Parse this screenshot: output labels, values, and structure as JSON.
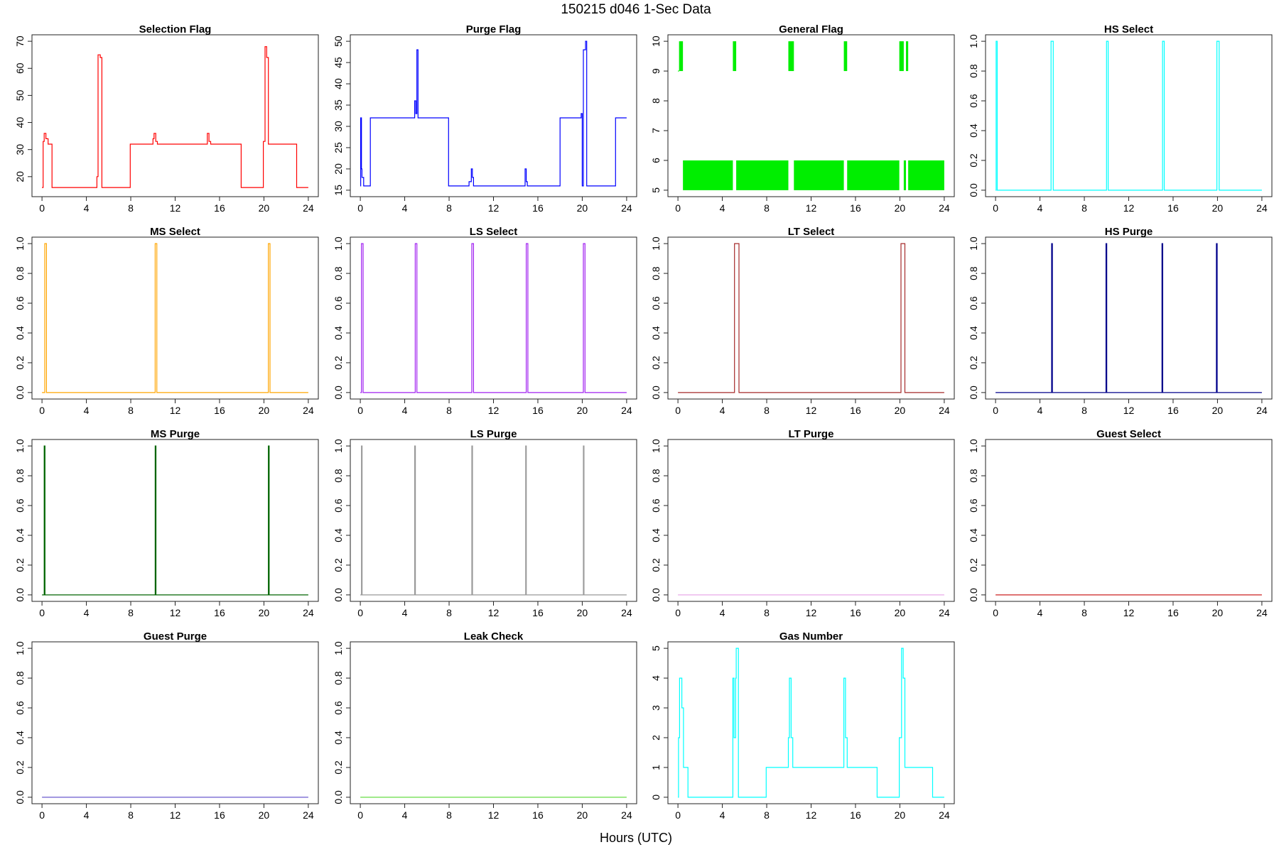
{
  "figure": {
    "title": "150215   d046   1-Sec Data",
    "xlabel": "Hours (UTC)"
  },
  "chart_data": [
    {
      "type": "line",
      "title": "Selection Flag",
      "color": "#ff0000",
      "xlim": [
        0,
        24
      ],
      "ylim": [
        15,
        70
      ],
      "xticks": [
        0,
        4,
        8,
        12,
        16,
        20,
        24
      ],
      "yticks": [
        20,
        30,
        40,
        50,
        60,
        70
      ],
      "x": [
        0,
        0.1,
        0.1,
        0.2,
        0.2,
        0.35,
        0.35,
        0.55,
        0.55,
        0.9,
        0.9,
        4.95,
        4.95,
        5.05,
        5.05,
        5.25,
        5.25,
        5.4,
        5.4,
        5.55,
        5.55,
        7.95,
        7.95,
        10.0,
        10.0,
        10.1,
        10.1,
        10.25,
        10.25,
        10.4,
        10.4,
        14.9,
        14.9,
        15.05,
        15.05,
        15.2,
        15.2,
        17.95,
        17.95,
        19.95,
        19.95,
        20.1,
        20.1,
        20.25,
        20.25,
        20.4,
        20.4,
        20.55,
        20.55,
        22.95,
        22.95,
        24
      ],
      "y": [
        16,
        16,
        33,
        33,
        36,
        36,
        34,
        34,
        32,
        32,
        16,
        16,
        20,
        20,
        65,
        65,
        64,
        64,
        16,
        16,
        16,
        16,
        32,
        32,
        34,
        34,
        36,
        36,
        33,
        33,
        32,
        32,
        36,
        36,
        33,
        33,
        32,
        32,
        16,
        16,
        33,
        33,
        68,
        68,
        64,
        64,
        32,
        32,
        32,
        32,
        16,
        16
      ]
    },
    {
      "type": "line",
      "title": "Purge Flag",
      "color": "#0000ff",
      "xlim": [
        0,
        24
      ],
      "ylim": [
        15,
        50
      ],
      "xticks": [
        0,
        4,
        8,
        12,
        16,
        20,
        24
      ],
      "yticks": [
        15,
        20,
        25,
        30,
        35,
        40,
        45,
        50
      ],
      "x": [
        0,
        0.03,
        0.03,
        0.1,
        0.1,
        0.15,
        0.15,
        0.3,
        0.3,
        0.9,
        0.9,
        4.9,
        4.9,
        5.0,
        5.0,
        5.1,
        5.1,
        5.2,
        5.2,
        5.55,
        5.55,
        7.95,
        7.95,
        9.8,
        9.8,
        10.0,
        10.0,
        10.1,
        10.1,
        10.2,
        10.2,
        14.85,
        14.85,
        14.95,
        14.95,
        15.05,
        15.05,
        18.0,
        18.0,
        19.9,
        19.9,
        20.0,
        20.0,
        20.1,
        20.1,
        20.3,
        20.3,
        20.4,
        20.4,
        23.0,
        23.0,
        24
      ],
      "y": [
        16,
        16,
        32,
        32,
        20,
        20,
        18,
        18,
        16,
        16,
        32,
        32,
        36,
        36,
        33,
        33,
        48,
        48,
        32,
        32,
        32,
        32,
        16,
        16,
        17,
        17,
        20,
        20,
        18,
        18,
        16,
        16,
        20,
        20,
        17,
        17,
        16,
        16,
        32,
        32,
        33,
        33,
        16,
        16,
        48,
        48,
        50,
        50,
        16,
        16,
        32,
        32
      ]
    },
    {
      "type": "line",
      "title": "General Flag",
      "color": "#00ee00",
      "xlim": [
        0,
        24
      ],
      "ylim": [
        5,
        10
      ],
      "xticks": [
        0,
        4,
        8,
        12,
        16,
        20,
        24
      ],
      "yticks": [
        5,
        6,
        7,
        8,
        9,
        10
      ],
      "segments": [
        [
          0,
          0.1,
          0,
          9
        ],
        [
          0.1,
          0.45,
          9,
          10
        ],
        [
          0.45,
          4.95,
          5,
          6
        ],
        [
          4.95,
          5.25,
          9,
          10
        ],
        [
          5.25,
          9.95,
          5,
          6
        ],
        [
          9.95,
          10.45,
          9,
          10
        ],
        [
          10.45,
          14.95,
          5,
          6
        ],
        [
          14.95,
          15.25,
          9,
          10
        ],
        [
          15.25,
          19.95,
          5,
          6
        ],
        [
          19.95,
          20.35,
          9,
          10
        ],
        [
          20.35,
          20.55,
          5,
          6
        ],
        [
          20.55,
          20.75,
          9,
          10
        ],
        [
          20.75,
          24,
          5,
          6
        ]
      ]
    },
    {
      "type": "line",
      "title": "HS Select",
      "color": "#00ffff",
      "xlim": [
        0,
        24
      ],
      "ylim": [
        0,
        1
      ],
      "xticks": [
        0,
        4,
        8,
        12,
        16,
        20,
        24
      ],
      "yticks": [
        0.0,
        0.2,
        0.4,
        0.6,
        0.8,
        1.0
      ],
      "pulses": [
        [
          0.05,
          0.15
        ],
        [
          5.0,
          5.2
        ],
        [
          10.0,
          10.15
        ],
        [
          15.05,
          15.2
        ],
        [
          19.95,
          20.15
        ]
      ]
    },
    {
      "type": "line",
      "title": "MS Select",
      "color": "#ffa500",
      "xlim": [
        0,
        24
      ],
      "ylim": [
        0,
        1
      ],
      "xticks": [
        0,
        4,
        8,
        12,
        16,
        20,
        24
      ],
      "yticks": [
        0.0,
        0.2,
        0.4,
        0.6,
        0.8,
        1.0
      ],
      "pulses": [
        [
          0.25,
          0.4
        ],
        [
          10.2,
          10.35
        ],
        [
          20.4,
          20.55
        ]
      ]
    },
    {
      "type": "line",
      "title": "LS Select",
      "color": "#a020f0",
      "xlim": [
        0,
        24
      ],
      "ylim": [
        0,
        1
      ],
      "xticks": [
        0,
        4,
        8,
        12,
        16,
        20,
        24
      ],
      "yticks": [
        0.0,
        0.2,
        0.4,
        0.6,
        0.8,
        1.0
      ],
      "pulses": [
        [
          0.1,
          0.25
        ],
        [
          4.95,
          5.1
        ],
        [
          10.05,
          10.2
        ],
        [
          14.95,
          15.1
        ],
        [
          20.1,
          20.25
        ]
      ]
    },
    {
      "type": "line",
      "title": "LT Select",
      "color": "#a52a2a",
      "xlim": [
        0,
        24
      ],
      "ylim": [
        0,
        1
      ],
      "xticks": [
        0,
        4,
        8,
        12,
        16,
        20,
        24
      ],
      "yticks": [
        0.0,
        0.2,
        0.4,
        0.6,
        0.8,
        1.0
      ],
      "pulses": [
        [
          5.1,
          5.5
        ],
        [
          20.1,
          20.45
        ]
      ]
    },
    {
      "type": "line",
      "title": "HS Purge",
      "color": "#00008b",
      "xlim": [
        0,
        24
      ],
      "ylim": [
        0,
        1
      ],
      "xticks": [
        0,
        4,
        8,
        12,
        16,
        20,
        24
      ],
      "yticks": [
        0.0,
        0.2,
        0.4,
        0.6,
        0.8,
        1.0
      ],
      "pulses": [
        [
          5.05,
          5.12
        ],
        [
          9.95,
          10.02
        ],
        [
          15.0,
          15.07
        ],
        [
          19.9,
          19.97
        ]
      ]
    },
    {
      "type": "line",
      "title": "MS Purge",
      "color": "#006400",
      "xlim": [
        0,
        24
      ],
      "ylim": [
        0,
        1
      ],
      "xticks": [
        0,
        4,
        8,
        12,
        16,
        20,
        24
      ],
      "yticks": [
        0.0,
        0.2,
        0.4,
        0.6,
        0.8,
        1.0
      ],
      "pulses": [
        [
          0.2,
          0.27
        ],
        [
          10.2,
          10.27
        ],
        [
          20.4,
          20.47
        ]
      ]
    },
    {
      "type": "line",
      "title": "LS Purge",
      "color": "#999999",
      "xlim": [
        0,
        24
      ],
      "ylim": [
        0,
        1
      ],
      "xticks": [
        0,
        4,
        8,
        12,
        16,
        20,
        24
      ],
      "yticks": [
        0.0,
        0.2,
        0.4,
        0.6,
        0.8,
        1.0
      ],
      "pulses": [
        [
          0.1,
          0.16
        ],
        [
          4.9,
          4.96
        ],
        [
          10.05,
          10.11
        ],
        [
          14.9,
          14.96
        ],
        [
          20.1,
          20.16
        ]
      ]
    },
    {
      "type": "line",
      "title": "LT Purge",
      "color": "#e8a8e8",
      "xlim": [
        0,
        24
      ],
      "ylim": [
        0,
        1
      ],
      "xticks": [
        0,
        4,
        8,
        12,
        16,
        20,
        24
      ],
      "yticks": [
        0.0,
        0.2,
        0.4,
        0.6,
        0.8,
        1.0
      ],
      "pulses": []
    },
    {
      "type": "line",
      "title": "Guest Select",
      "color": "#cc2222",
      "xlim": [
        0,
        24
      ],
      "ylim": [
        0,
        1
      ],
      "xticks": [
        0,
        4,
        8,
        12,
        16,
        20,
        24
      ],
      "yticks": [
        0.0,
        0.2,
        0.4,
        0.6,
        0.8,
        1.0
      ],
      "pulses": []
    },
    {
      "type": "line",
      "title": "Guest Purge",
      "color": "#6a5acd",
      "xlim": [
        0,
        24
      ],
      "ylim": [
        0,
        1
      ],
      "xticks": [
        0,
        4,
        8,
        12,
        16,
        20,
        24
      ],
      "yticks": [
        0.0,
        0.2,
        0.4,
        0.6,
        0.8,
        1.0
      ],
      "pulses": []
    },
    {
      "type": "line",
      "title": "Leak Check",
      "color": "#66dd44",
      "xlim": [
        0,
        24
      ],
      "ylim": [
        0,
        1
      ],
      "xticks": [
        0,
        4,
        8,
        12,
        16,
        20,
        24
      ],
      "yticks": [
        0.0,
        0.2,
        0.4,
        0.6,
        0.8,
        1.0
      ],
      "pulses": []
    },
    {
      "type": "line",
      "title": "Gas Number",
      "color": "#00ffff",
      "xlim": [
        0,
        24
      ],
      "ylim": [
        0,
        5
      ],
      "xticks": [
        0,
        4,
        8,
        12,
        16,
        20,
        24
      ],
      "yticks": [
        0,
        1,
        2,
        3,
        4,
        5
      ],
      "x": [
        0,
        0.05,
        0.05,
        0.15,
        0.15,
        0.35,
        0.35,
        0.5,
        0.5,
        0.9,
        0.9,
        4.95,
        4.95,
        5.05,
        5.05,
        5.2,
        5.2,
        5.25,
        5.25,
        5.45,
        5.45,
        7.95,
        7.95,
        9.95,
        9.95,
        10.05,
        10.05,
        10.2,
        10.2,
        10.35,
        10.35,
        14.95,
        14.95,
        15.1,
        15.1,
        15.25,
        15.25,
        17.95,
        17.95,
        19.95,
        19.95,
        20.15,
        20.15,
        20.3,
        20.3,
        20.45,
        20.45,
        22.95,
        22.95,
        24
      ],
      "y": [
        0,
        0,
        2,
        2,
        4,
        4,
        3,
        3,
        1,
        1,
        0,
        0,
        4,
        4,
        2,
        2,
        4,
        4,
        5,
        5,
        0,
        0,
        1,
        1,
        2,
        2,
        4,
        4,
        2,
        2,
        1,
        1,
        4,
        4,
        2,
        2,
        1,
        1,
        0,
        0,
        2,
        2,
        5,
        5,
        4,
        4,
        1,
        1,
        0,
        0
      ]
    }
  ]
}
